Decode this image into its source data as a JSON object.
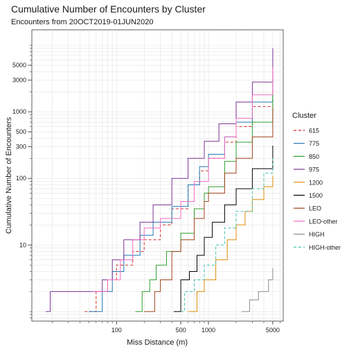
{
  "chart_data": {
    "type": "line",
    "title": "Cumulative Number of Encounters by Cluster",
    "subtitle": "Encounters from 20OCT2019-01JUN2020",
    "xlabel": "Miss Distance (m)",
    "ylabel": "Cumulative Number of Encounters",
    "x_scale": "log",
    "y_scale": "log",
    "xlim": [
      12,
      6500
    ],
    "ylim": [
      0.72,
      17000
    ],
    "x_ticks": [
      100,
      500,
      1000,
      5000
    ],
    "x_tick_labels": [
      "100",
      "500",
      "1000",
      "5000"
    ],
    "y_ticks": [
      10,
      100,
      300,
      500,
      1000,
      3000,
      5000
    ],
    "y_tick_labels": [
      "10",
      "100",
      "300",
      "500",
      "1000",
      "3000",
      "5000"
    ],
    "grid": true,
    "legend_title": "Cluster",
    "legend_position": "right",
    "series": [
      {
        "name": "615",
        "color": "#d62728",
        "dash": "dashed",
        "points": [
          [
            45,
            1
          ],
          [
            60,
            2
          ],
          [
            80,
            3
          ],
          [
            100,
            5
          ],
          [
            150,
            8
          ],
          [
            200,
            12
          ],
          [
            300,
            20
          ],
          [
            400,
            35
          ],
          [
            600,
            80
          ],
          [
            800,
            130
          ],
          [
            1000,
            200
          ],
          [
            1500,
            350
          ],
          [
            2000,
            600
          ],
          [
            3000,
            1200
          ],
          [
            5000,
            2600
          ]
        ]
      },
      {
        "name": "775",
        "color": "#1f77b4",
        "dash": "solid",
        "points": [
          [
            50,
            1
          ],
          [
            70,
            2
          ],
          [
            90,
            4
          ],
          [
            120,
            7
          ],
          [
            180,
            14
          ],
          [
            250,
            22
          ],
          [
            400,
            38
          ],
          [
            600,
            80
          ],
          [
            800,
            150
          ],
          [
            1000,
            230
          ],
          [
            1500,
            420
          ],
          [
            2000,
            700
          ],
          [
            3000,
            1400
          ],
          [
            5000,
            3000
          ]
        ]
      },
      {
        "name": "850",
        "color": "#2ca02c",
        "dash": "solid",
        "points": [
          [
            160,
            1
          ],
          [
            190,
            2
          ],
          [
            230,
            3
          ],
          [
            270,
            5
          ],
          [
            350,
            8
          ],
          [
            500,
            15
          ],
          [
            700,
            35
          ],
          [
            900,
            60
          ],
          [
            1000,
            75
          ],
          [
            1500,
            180
          ],
          [
            2000,
            350
          ],
          [
            3000,
            700
          ],
          [
            5000,
            1900
          ]
        ]
      },
      {
        "name": "975",
        "color": "#7b3294",
        "dash": "solid",
        "points": [
          [
            17,
            1
          ],
          [
            19,
            2
          ],
          [
            70,
            3
          ],
          [
            90,
            6
          ],
          [
            120,
            12
          ],
          [
            180,
            22
          ],
          [
            250,
            40
          ],
          [
            400,
            100
          ],
          [
            600,
            200
          ],
          [
            900,
            360
          ],
          [
            1300,
            660
          ],
          [
            2000,
            1400
          ],
          [
            3000,
            2800
          ],
          [
            5000,
            9000
          ]
        ]
      },
      {
        "name": "1200",
        "color": "#e08a0b",
        "dash": "solid",
        "points": [
          [
            600,
            1
          ],
          [
            750,
            2
          ],
          [
            900,
            3
          ],
          [
            1200,
            6
          ],
          [
            1600,
            12
          ],
          [
            2000,
            20
          ],
          [
            2500,
            32
          ],
          [
            3000,
            48
          ],
          [
            4000,
            75
          ],
          [
            5000,
            110
          ]
        ]
      },
      {
        "name": "1500",
        "color": "#000000",
        "dash": "solid",
        "points": [
          [
            420,
            1
          ],
          [
            500,
            3
          ],
          [
            620,
            4
          ],
          [
            750,
            7
          ],
          [
            900,
            13
          ],
          [
            1100,
            22
          ],
          [
            1500,
            40
          ],
          [
            2000,
            70
          ],
          [
            3000,
            140
          ],
          [
            5000,
            310
          ]
        ]
      },
      {
        "name": "LEO",
        "color": "#a0421f",
        "dash": "solid",
        "points": [
          [
            200,
            1
          ],
          [
            260,
            2
          ],
          [
            300,
            3
          ],
          [
            400,
            8
          ],
          [
            500,
            12
          ],
          [
            700,
            25
          ],
          [
            900,
            45
          ],
          [
            1000,
            60
          ],
          [
            1500,
            120
          ],
          [
            2000,
            200
          ],
          [
            3000,
            420
          ],
          [
            5000,
            1150
          ]
        ]
      },
      {
        "name": "LEO-other",
        "color": "#f06bbf",
        "dash": "solid",
        "points": [
          [
            55,
            2
          ],
          [
            80,
            3
          ],
          [
            110,
            6
          ],
          [
            150,
            12
          ],
          [
            200,
            18
          ],
          [
            300,
            25
          ],
          [
            500,
            45
          ],
          [
            700,
            90
          ],
          [
            1000,
            200
          ],
          [
            1500,
            420
          ],
          [
            2000,
            800
          ],
          [
            3000,
            1800
          ],
          [
            5000,
            4700
          ]
        ]
      },
      {
        "name": "HIGH",
        "color": "#8c8c8c",
        "dash": "solid",
        "points": [
          [
            2300,
            1
          ],
          [
            2800,
            1.5
          ],
          [
            3500,
            2
          ],
          [
            4500,
            3
          ],
          [
            5000,
            4.5
          ]
        ]
      },
      {
        "name": "HIGH-other",
        "color": "#3fbfad",
        "dash": "dashed",
        "points": [
          [
            500,
            1
          ],
          [
            550,
            2
          ],
          [
            700,
            3
          ],
          [
            900,
            5
          ],
          [
            1200,
            10
          ],
          [
            1500,
            18
          ],
          [
            2000,
            32
          ],
          [
            3000,
            70
          ],
          [
            4000,
            120
          ],
          [
            5000,
            200
          ]
        ]
      }
    ]
  }
}
